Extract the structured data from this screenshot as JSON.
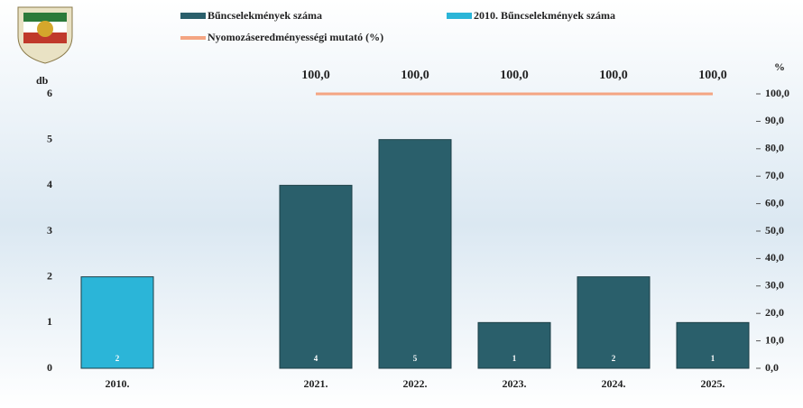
{
  "chart_data": {
    "type": "bar",
    "categories": [
      "2010.",
      null,
      "2021.",
      "2022.",
      "2023.",
      "2024.",
      "2025."
    ],
    "series": [
      {
        "name": "Bűncselekmények száma",
        "color": "#2a5f6b",
        "type": "bar",
        "values": [
          null,
          null,
          4,
          5,
          1,
          2,
          1
        ]
      },
      {
        "name": "2010. Bűncselekmények száma",
        "color": "#2bb5d8",
        "type": "bar",
        "values": [
          2,
          null,
          null,
          null,
          null,
          null,
          null
        ]
      },
      {
        "name": "Nyomozáseredményességi mutató (%)",
        "color": "#f4a582",
        "type": "line",
        "axis": "y2",
        "values": [
          null,
          null,
          100,
          100,
          100,
          100,
          100
        ],
        "value_labels": [
          null,
          null,
          "100,0",
          "100,0",
          "100,0",
          "100,0",
          "100,0"
        ]
      }
    ],
    "ylabel": "db",
    "y2label": "%",
    "ylim": [
      0,
      6
    ],
    "yticks": [
      0,
      1,
      2,
      3,
      4,
      5,
      6
    ],
    "y2lim": [
      0,
      100
    ],
    "y2ticks": [
      {
        "value": 0,
        "label": "0,0"
      },
      {
        "value": 10,
        "label": "10,0"
      },
      {
        "value": 20,
        "label": "20,0"
      },
      {
        "value": 30,
        "label": "30,0"
      },
      {
        "value": 40,
        "label": "40,0"
      },
      {
        "value": 50,
        "label": "50,0"
      },
      {
        "value": 60,
        "label": "60,0"
      },
      {
        "value": 70,
        "label": "70,0"
      },
      {
        "value": 80,
        "label": "80,0"
      },
      {
        "value": 90,
        "label": "90,0"
      },
      {
        "value": 100,
        "label": "100,0"
      }
    ],
    "grid": false
  }
}
